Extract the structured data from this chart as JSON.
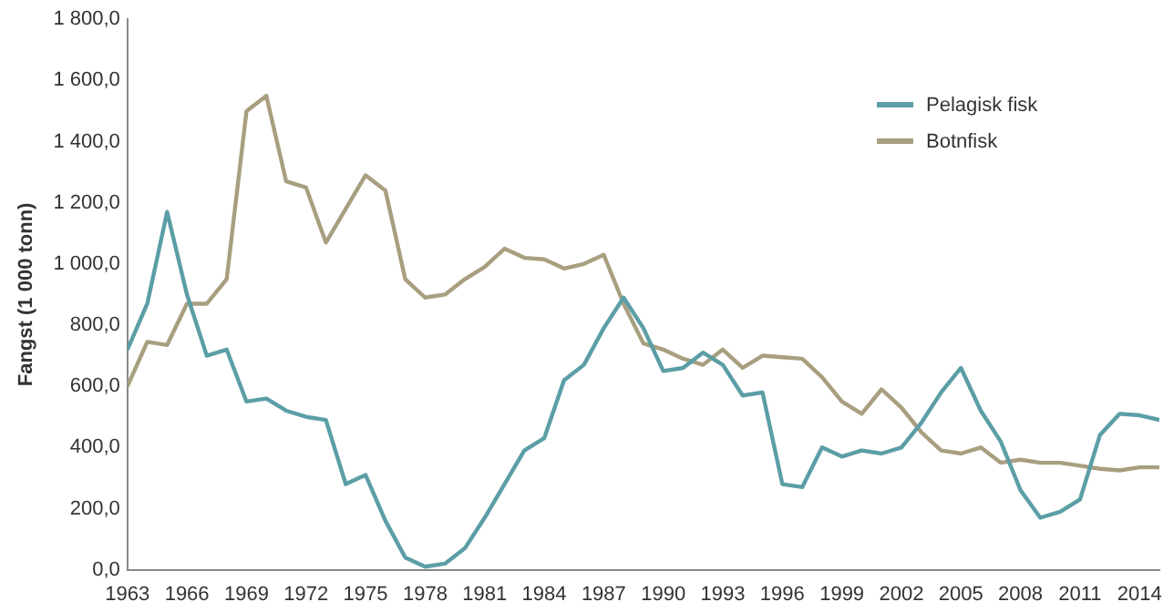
{
  "chart_data": {
    "type": "line",
    "ylabel": "Fangst (1 000 tonn)",
    "x": [
      1963,
      1964,
      1965,
      1966,
      1967,
      1968,
      1969,
      1970,
      1971,
      1972,
      1973,
      1974,
      1975,
      1976,
      1977,
      1978,
      1979,
      1980,
      1981,
      1982,
      1983,
      1984,
      1985,
      1986,
      1987,
      1988,
      1989,
      1990,
      1991,
      1992,
      1993,
      1994,
      1995,
      1996,
      1997,
      1998,
      1999,
      2000,
      2001,
      2002,
      2003,
      2004,
      2005,
      2006,
      2007,
      2008,
      2009,
      2010,
      2011,
      2012,
      2013,
      2014,
      2015
    ],
    "series": [
      {
        "name": "Pelagisk fisk",
        "color": "#5b9ea6",
        "values": [
          720,
          870,
          1170,
          900,
          700,
          720,
          550,
          560,
          520,
          500,
          490,
          280,
          310,
          160,
          40,
          10,
          20,
          70,
          170,
          280,
          390,
          430,
          620,
          670,
          790,
          890,
          790,
          650,
          660,
          710,
          670,
          570,
          580,
          280,
          270,
          400,
          370,
          390,
          380,
          400,
          480,
          580,
          660,
          520,
          420,
          260,
          170,
          190,
          230,
          440,
          510,
          505,
          490
        ]
      },
      {
        "name": "Botnfisk",
        "color": "#a89f80",
        "values": [
          600,
          745,
          735,
          870,
          870,
          950,
          1500,
          1550,
          1270,
          1250,
          1070,
          1180,
          1290,
          1240,
          950,
          890,
          900,
          950,
          990,
          1050,
          1020,
          1015,
          985,
          1000,
          1030,
          870,
          740,
          720,
          690,
          670,
          720,
          660,
          700,
          695,
          690,
          630,
          550,
          510,
          590,
          530,
          450,
          390,
          380,
          400,
          350,
          360,
          350,
          350,
          340,
          330,
          325,
          335,
          335
        ]
      }
    ],
    "xlim": [
      1963,
      2015
    ],
    "xticks": [
      1963,
      1966,
      1969,
      1972,
      1975,
      1978,
      1981,
      1984,
      1987,
      1990,
      1993,
      1996,
      1999,
      2002,
      2005,
      2008,
      2011,
      2014
    ],
    "ylim": [
      0,
      1800
    ],
    "yticks": [
      {
        "value": 0,
        "label": "0,0"
      },
      {
        "value": 200,
        "label": "200,0"
      },
      {
        "value": 400,
        "label": "400,0"
      },
      {
        "value": 600,
        "label": "600,0"
      },
      {
        "value": 800,
        "label": "800,0"
      },
      {
        "value": 1000,
        "label": "1 000,0"
      },
      {
        "value": 1200,
        "label": "1 200,0"
      },
      {
        "value": 1400,
        "label": "1 400,0"
      },
      {
        "value": 1600,
        "label": "1 600,0"
      },
      {
        "value": 1800,
        "label": "1 800,0"
      }
    ],
    "grid": false,
    "legend": "right",
    "marker": "none",
    "line_style": "solid"
  }
}
